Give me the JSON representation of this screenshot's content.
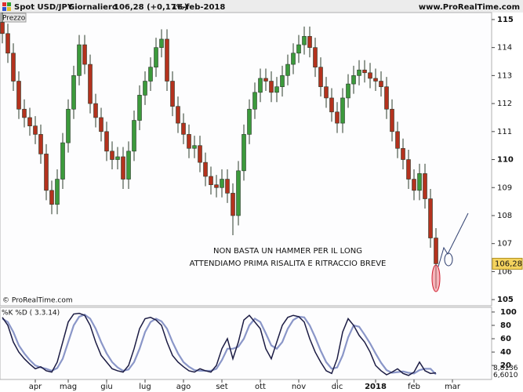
{
  "chart_data": [
    {
      "type": "candlestick",
      "title": "Spot USD/JPY",
      "timeframe": "Giornaliero",
      "last_quote": "106,28 (+0,17%)",
      "date": "16-feb-2018",
      "source": "www.ProRealTime.com",
      "pane_label": "Prezzo",
      "copyright": "© ProRealTime.com",
      "annotations": [
        "NON BASTA UN HAMMER PER IL LONG",
        "ATTENDIAMO PRIMA RISALITA E RITRACCIO BREVE"
      ],
      "up_color": "#3c9a3c",
      "down_color": "#b4321e",
      "open": [
        114.9,
        114.5,
        113.8,
        112.8,
        111.8,
        111.5,
        111.2,
        110.9,
        110.2,
        108.9,
        108.4,
        109.3,
        110.6,
        111.8,
        113.0,
        114.1,
        113.4,
        112.0,
        111.5,
        111.0,
        110.3,
        110.0,
        110.1,
        109.3,
        110.3,
        111.4,
        112.3,
        112.8,
        113.3,
        114.0,
        114.3,
        112.8,
        111.9,
        111.3,
        110.9,
        110.4,
        110.5,
        109.9,
        109.4,
        109.1,
        109.0,
        109.3,
        108.8,
        108.0,
        109.6,
        110.9,
        111.8,
        112.4,
        112.9,
        112.8,
        112.4,
        112.6,
        113.0,
        113.4,
        113.8,
        114.1,
        114.4,
        114.0,
        113.3,
        112.6,
        112.2,
        111.7,
        111.3,
        112.2,
        112.7,
        113.0,
        113.2,
        113.1,
        112.9,
        112.8,
        112.6,
        111.8,
        111.0,
        110.4,
        110.0,
        109.3,
        108.9,
        109.5,
        108.6,
        107.2,
        null,
        null,
        null
      ],
      "high": [
        115.25,
        114.85,
        114.15,
        113.15,
        112.15,
        111.85,
        111.55,
        111.25,
        110.55,
        109.25,
        109.65,
        110.95,
        112.15,
        113.35,
        114.45,
        114.45,
        113.75,
        112.35,
        111.85,
        111.35,
        110.65,
        110.45,
        110.45,
        110.65,
        111.75,
        112.65,
        113.15,
        113.65,
        114.35,
        114.65,
        114.65,
        113.15,
        112.25,
        111.65,
        111.25,
        110.85,
        110.85,
        110.25,
        109.75,
        109.45,
        109.65,
        109.65,
        109.15,
        109.95,
        111.25,
        112.15,
        112.75,
        113.25,
        113.25,
        113.15,
        112.95,
        113.35,
        113.75,
        114.15,
        114.45,
        114.75,
        114.75,
        114.35,
        113.65,
        112.95,
        112.55,
        112.05,
        112.55,
        113.05,
        113.35,
        113.55,
        113.55,
        113.45,
        113.25,
        113.15,
        112.95,
        112.15,
        111.35,
        110.75,
        110.35,
        109.65,
        109.85,
        109.85,
        108.95,
        107.55,
        null,
        null,
        null
      ],
      "low": [
        114.15,
        113.45,
        112.45,
        111.45,
        111.15,
        110.85,
        110.55,
        109.85,
        108.55,
        108.05,
        108.05,
        108.95,
        110.25,
        111.45,
        112.65,
        113.05,
        111.65,
        111.15,
        110.65,
        109.95,
        109.65,
        109.65,
        108.95,
        108.95,
        109.95,
        111.05,
        111.95,
        112.45,
        112.95,
        113.65,
        112.45,
        111.55,
        110.95,
        110.55,
        110.05,
        110.05,
        109.55,
        109.05,
        108.75,
        108.65,
        108.65,
        108.45,
        107.3,
        107.65,
        109.25,
        110.55,
        111.45,
        112.05,
        112.45,
        112.05,
        112.05,
        112.25,
        112.65,
        113.05,
        113.45,
        113.75,
        113.65,
        112.95,
        112.25,
        111.85,
        111.35,
        110.95,
        110.95,
        111.85,
        112.35,
        112.65,
        112.75,
        112.55,
        112.45,
        112.25,
        111.45,
        110.65,
        110.05,
        109.65,
        108.95,
        108.55,
        108.55,
        108.25,
        106.85,
        105.4,
        null,
        null,
        null
      ],
      "close": [
        114.5,
        113.8,
        112.8,
        111.8,
        111.5,
        111.2,
        110.9,
        110.2,
        108.9,
        108.4,
        109.3,
        110.6,
        111.8,
        113.0,
        114.1,
        113.4,
        112.0,
        111.5,
        111.0,
        110.3,
        110.0,
        110.1,
        109.3,
        110.3,
        111.4,
        112.3,
        112.8,
        113.3,
        114.0,
        114.3,
        112.8,
        111.9,
        111.3,
        110.9,
        110.4,
        110.5,
        109.9,
        109.4,
        109.1,
        109.0,
        109.3,
        108.8,
        108.0,
        109.6,
        110.9,
        111.8,
        112.4,
        112.9,
        112.8,
        112.4,
        112.6,
        113.0,
        113.4,
        113.8,
        114.1,
        114.4,
        114.0,
        113.3,
        112.6,
        112.2,
        111.7,
        111.3,
        112.2,
        112.7,
        113.0,
        113.2,
        113.1,
        112.9,
        112.8,
        112.6,
        111.8,
        111.0,
        110.4,
        110.0,
        109.3,
        108.9,
        109.5,
        108.6,
        107.2,
        106.28,
        null,
        null,
        null
      ],
      "last_label": "106,28",
      "ylim": [
        104.78,
        115.25
      ],
      "yticks": [
        105,
        106,
        107,
        108,
        109,
        110,
        111,
        112,
        113,
        114,
        115
      ]
    },
    {
      "type": "line",
      "legend": "%K  %D ( 3.3.14)",
      "categories": [
        null,
        null,
        null,
        null,
        null,
        null,
        "apr",
        null,
        null,
        null,
        null,
        null,
        "mag",
        null,
        null,
        null,
        null,
        null,
        null,
        "giu",
        null,
        null,
        null,
        null,
        null,
        null,
        "lug",
        null,
        null,
        null,
        null,
        null,
        null,
        "ago",
        null,
        null,
        null,
        null,
        null,
        null,
        "set",
        null,
        null,
        null,
        null,
        null,
        null,
        "ott",
        null,
        null,
        null,
        null,
        null,
        null,
        "nov",
        null,
        null,
        null,
        null,
        null,
        null,
        "dic",
        null,
        null,
        null,
        null,
        null,
        null,
        "2018",
        null,
        null,
        null,
        null,
        null,
        null,
        "feb",
        null,
        null,
        null,
        null,
        null,
        null,
        "mar"
      ],
      "series": [
        {
          "color": "#1c1c44",
          "last_label": "8,8136",
          "values": [
            92,
            80,
            55,
            40,
            30,
            22,
            15,
            18,
            12,
            10,
            25,
            55,
            85,
            97,
            98,
            95,
            80,
            55,
            35,
            25,
            15,
            12,
            10,
            20,
            45,
            75,
            90,
            92,
            88,
            80,
            55,
            35,
            25,
            18,
            12,
            10,
            15,
            12,
            10,
            20,
            45,
            60,
            30,
            55,
            88,
            95,
            85,
            75,
            45,
            30,
            55,
            80,
            92,
            95,
            93,
            85,
            60,
            40,
            25,
            12,
            8,
            30,
            70,
            90,
            80,
            65,
            55,
            40,
            20,
            12,
            6,
            10,
            15,
            8,
            5,
            10,
            25,
            12,
            8,
            8.8136,
            null,
            null,
            null
          ]
        },
        {
          "color": "#8a96c8",
          "last_label": "6,6010",
          "values": [
            90,
            85,
            70,
            50,
            38,
            28,
            20,
            17,
            15,
            12,
            16,
            30,
            55,
            80,
            93,
            96,
            90,
            75,
            55,
            38,
            25,
            17,
            12,
            14,
            25,
            45,
            70,
            85,
            90,
            86,
            75,
            55,
            38,
            25,
            18,
            13,
            12,
            12,
            12,
            15,
            28,
            45,
            45,
            48,
            60,
            80,
            90,
            85,
            68,
            50,
            45,
            55,
            75,
            88,
            93,
            92,
            80,
            62,
            42,
            25,
            15,
            17,
            35,
            62,
            80,
            78,
            66,
            53,
            38,
            24,
            13,
            9,
            10,
            11,
            9,
            8,
            13,
            15,
            15,
            6.601,
            null,
            null,
            null
          ]
        }
      ],
      "ylim": [
        -1,
        107
      ],
      "yticks": [
        20,
        40,
        60,
        80,
        100
      ]
    }
  ]
}
